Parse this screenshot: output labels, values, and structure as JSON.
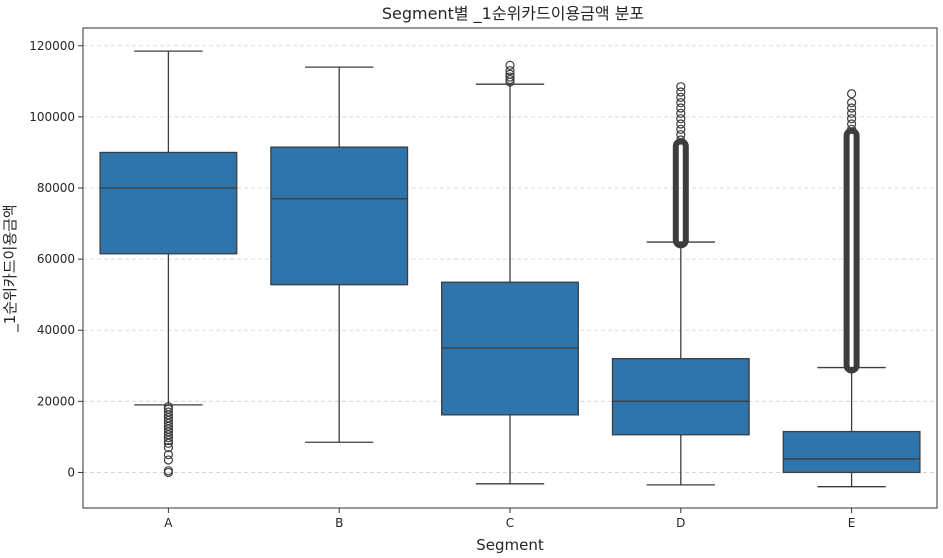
{
  "chart_data": {
    "type": "box",
    "title": "Segment별 _1순위카드이용금액 분포",
    "xlabel": "Segment",
    "ylabel": "_1순위카드이용금액",
    "categories": [
      "A",
      "B",
      "C",
      "D",
      "E"
    ],
    "ylim": [
      -10000,
      125000
    ],
    "yticks": [
      0,
      20000,
      40000,
      60000,
      80000,
      100000,
      120000
    ],
    "grid": "y-dashed",
    "box_color": "#2f74aa",
    "series": [
      {
        "category": "A",
        "q1": 61500,
        "median": 80000,
        "q3": 90000,
        "whisker_low": 19000,
        "whisker_high": 118500,
        "outliers": [
          18500,
          17800,
          17000,
          16200,
          15400,
          14600,
          13800,
          13000,
          12200,
          11400,
          10600,
          9800,
          9000,
          8200,
          7000,
          5000,
          3500,
          500,
          0
        ]
      },
      {
        "category": "B",
        "q1": 52800,
        "median": 77000,
        "q3": 91500,
        "whisker_low": 8500,
        "whisker_high": 114000,
        "outliers": []
      },
      {
        "category": "C",
        "q1": 16200,
        "median": 35000,
        "q3": 53500,
        "whisker_low": -3200,
        "whisker_high": 109200,
        "outliers": [
          109800,
          110500,
          111200,
          112000,
          113000,
          114500
        ]
      },
      {
        "category": "D",
        "q1": 10600,
        "median": 20000,
        "q3": 32000,
        "whisker_low": -3500,
        "whisker_high": 64800,
        "outliers_dense_range": [
          65000,
          92000
        ],
        "outliers": [
          93500,
          95000,
          96500,
          98000,
          99500,
          101000,
          102500,
          104000,
          105500,
          107000,
          108500
        ]
      },
      {
        "category": "E",
        "q1": 0,
        "median": 3800,
        "q3": 11500,
        "whisker_low": -4000,
        "whisker_high": 29500,
        "outliers_dense_range": [
          29800,
          95000
        ],
        "outliers": [
          96500,
          98000,
          99500,
          101000,
          102500,
          104000,
          106500
        ]
      }
    ]
  }
}
